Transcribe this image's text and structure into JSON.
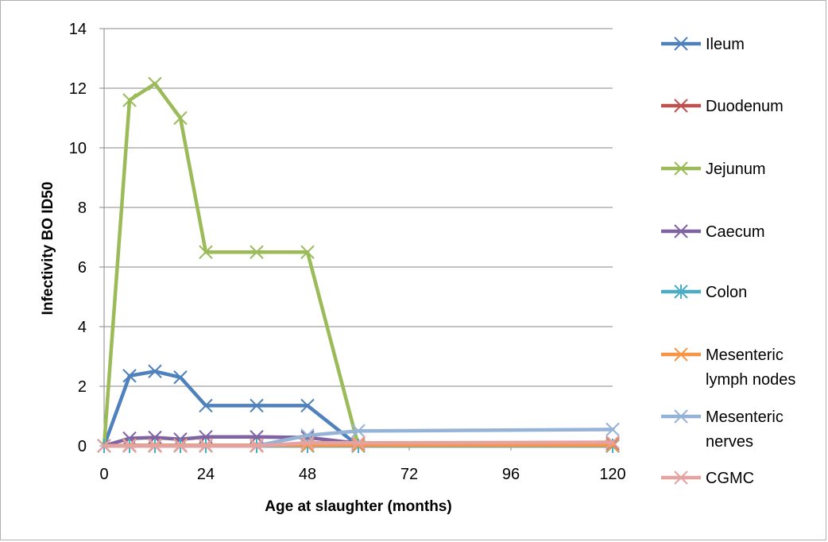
{
  "chart_data": {
    "type": "line",
    "title": "",
    "xlabel": "Age at slaughter (months)",
    "ylabel": "Infectivity BO ID50",
    "xlim": [
      0,
      120
    ],
    "ylim": [
      0,
      14
    ],
    "x_ticks": [
      0,
      24,
      48,
      72,
      96,
      120
    ],
    "y_ticks": [
      0,
      2,
      4,
      6,
      8,
      10,
      12,
      14
    ],
    "grid": "horizontal",
    "legend_position": "right",
    "series": [
      {
        "name": "Ileum",
        "color": "#4F81BD",
        "x": [
          0,
          6,
          12,
          18,
          24,
          36,
          48,
          60,
          120
        ],
        "y": [
          0,
          2.35,
          2.5,
          2.3,
          1.35,
          1.35,
          1.35,
          0,
          0
        ]
      },
      {
        "name": "Duodenum",
        "color": "#C0504D",
        "x": [
          0,
          6,
          12,
          18,
          24,
          36,
          48,
          60,
          120
        ],
        "y": [
          0,
          0,
          0,
          0,
          0,
          0,
          0,
          0,
          0
        ]
      },
      {
        "name": "Jejunum",
        "color": "#9BBB59",
        "x": [
          0,
          6,
          12,
          18,
          24,
          36,
          48,
          60,
          120
        ],
        "y": [
          0,
          11.6,
          12.15,
          11.0,
          6.5,
          6.5,
          6.5,
          0,
          0
        ]
      },
      {
        "name": "Caecum",
        "color": "#8064A2",
        "x": [
          0,
          6,
          12,
          18,
          24,
          36,
          48,
          60,
          120
        ],
        "y": [
          0,
          0.25,
          0.28,
          0.22,
          0.3,
          0.3,
          0.28,
          0.08,
          0.08
        ]
      },
      {
        "name": "Colon",
        "color": "#4BACC6",
        "x": [
          0,
          6,
          12,
          18,
          24,
          36,
          48,
          60,
          120
        ],
        "y": [
          0,
          0,
          0,
          0,
          0,
          0,
          0,
          0,
          0
        ]
      },
      {
        "name": "Mesenteric lymph nodes",
        "label_lines": [
          "Mesenteric",
          "lymph nodes"
        ],
        "color": "#F79646",
        "x": [
          0,
          6,
          12,
          18,
          24,
          36,
          48,
          60,
          120
        ],
        "y": [
          0,
          0.02,
          0.02,
          0.02,
          0.02,
          0.02,
          0.02,
          0.02,
          0.02
        ]
      },
      {
        "name": "Mesenteric nerves",
        "label_lines": [
          "Mesenteric",
          "nerves"
        ],
        "color": "#95B3D7",
        "x": [
          0,
          6,
          12,
          18,
          24,
          36,
          48,
          60,
          120
        ],
        "y": [
          0,
          0,
          0,
          0,
          0,
          0,
          0.35,
          0.5,
          0.55
        ]
      },
      {
        "name": "CGMC",
        "color": "#E6A2A0",
        "x": [
          0,
          6,
          12,
          18,
          24,
          36,
          48,
          60,
          120
        ],
        "y": [
          0,
          0,
          0,
          0,
          0,
          0,
          0.1,
          0.1,
          0.12
        ]
      }
    ]
  }
}
